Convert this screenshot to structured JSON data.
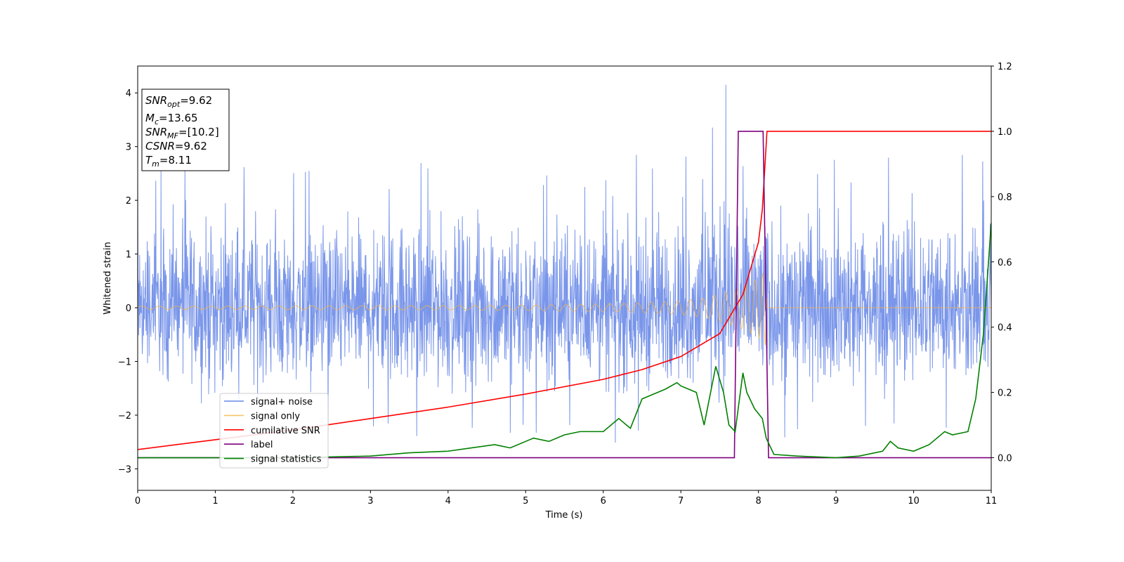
{
  "chart_data": {
    "type": "line",
    "title": "",
    "xlabel": "Time (s)",
    "ylabel": "Whitened strain",
    "xlim": [
      0,
      11
    ],
    "ylim": [
      -3.4,
      4.5
    ],
    "y2lim": [
      -0.1,
      1.2
    ],
    "xticks": [
      "0",
      "1",
      "2",
      "3",
      "4",
      "5",
      "6",
      "7",
      "8",
      "9",
      "10",
      "11"
    ],
    "yticks": [
      "−3",
      "−2",
      "−1",
      "0",
      "1",
      "2",
      "3",
      "4"
    ],
    "y2ticks": [
      "0.0",
      "0.2",
      "0.4",
      "0.6",
      "0.8",
      "1.0",
      "1.2"
    ],
    "legend_position": "lower-left",
    "grid": false,
    "info_box": {
      "snr_opt": {
        "base": "SNR",
        "sub": "opt",
        "value": "=9.62"
      },
      "mc": {
        "base": "M",
        "sub": "c",
        "value": "=13.65"
      },
      "snr_mf": {
        "base": "SNR",
        "sub": "MF",
        "value": "=[10.2]"
      },
      "csnr": {
        "base": "CSNR",
        "sub": "",
        "value": "=9.62"
      },
      "tm": {
        "base": "T",
        "sub": "m",
        "value": "=8.11"
      }
    },
    "series": [
      {
        "name": "signal+ noise",
        "axis": "left",
        "color": "#4169e1",
        "description": "noise band",
        "envelope_x": [
          0,
          1,
          2,
          3,
          4,
          5,
          6,
          7,
          7.58,
          8,
          9,
          10,
          11
        ],
        "envelope_min": [
          -2.0,
          -2.6,
          -2.4,
          -2.5,
          -2.7,
          -2.5,
          -2.6,
          -2.5,
          -2.4,
          -2.5,
          -2.4,
          -2.5,
          -2.2
        ],
        "envelope_max": [
          2.6,
          2.8,
          2.7,
          2.6,
          2.8,
          2.7,
          2.8,
          3.0,
          4.15,
          2.9,
          2.8,
          3.25,
          3.0
        ]
      },
      {
        "name": "signal only",
        "axis": "left",
        "color": "#f5b642",
        "x": [
          0,
          1,
          2,
          3,
          4,
          5,
          6,
          6.5,
          7,
          7.3,
          7.6,
          7.8,
          8.0,
          8.1,
          8.11,
          11
        ],
        "amplitude": [
          0.03,
          0.03,
          0.035,
          0.04,
          0.04,
          0.05,
          0.07,
          0.09,
          0.13,
          0.18,
          0.3,
          0.4,
          0.55,
          0.72,
          0.0,
          0.0
        ]
      },
      {
        "name": "cumilative SNR",
        "axis": "right",
        "color": "#ff0000",
        "x": [
          0,
          1,
          2,
          3,
          4,
          5,
          6,
          6.5,
          7,
          7.5,
          7.8,
          8.0,
          8.05,
          8.11,
          11
        ],
        "values": [
          0.025,
          0.055,
          0.085,
          0.12,
          0.155,
          0.195,
          0.24,
          0.27,
          0.31,
          0.38,
          0.5,
          0.66,
          0.76,
          1.0,
          1.0
        ]
      },
      {
        "name": "label",
        "axis": "right",
        "color": "#800080",
        "x": [
          0,
          7.69,
          7.74,
          8.06,
          8.13,
          11
        ],
        "values": [
          0.0,
          0.0,
          1.0,
          1.0,
          0.0,
          0.0
        ]
      },
      {
        "name": "signal statistics",
        "axis": "right",
        "color": "#008000",
        "x": [
          0,
          2.0,
          3.0,
          3.5,
          4.0,
          4.3,
          4.6,
          4.8,
          5.0,
          5.1,
          5.3,
          5.5,
          5.7,
          6.0,
          6.2,
          6.35,
          6.5,
          6.7,
          6.8,
          6.95,
          7.0,
          7.2,
          7.3,
          7.45,
          7.55,
          7.62,
          7.7,
          7.8,
          7.85,
          7.95,
          8.05,
          8.1,
          8.2,
          8.5,
          9.0,
          9.3,
          9.6,
          9.7,
          9.8,
          10.0,
          10.2,
          10.4,
          10.5,
          10.7,
          10.8,
          10.9,
          11.0
        ],
        "values": [
          0.0,
          0.0,
          0.005,
          0.015,
          0.02,
          0.03,
          0.04,
          0.03,
          0.05,
          0.06,
          0.05,
          0.07,
          0.08,
          0.08,
          0.12,
          0.09,
          0.18,
          0.2,
          0.21,
          0.23,
          0.22,
          0.2,
          0.1,
          0.28,
          0.2,
          0.1,
          0.08,
          0.26,
          0.2,
          0.15,
          0.12,
          0.06,
          0.01,
          0.005,
          0.0,
          0.005,
          0.02,
          0.05,
          0.03,
          0.02,
          0.04,
          0.08,
          0.07,
          0.08,
          0.18,
          0.38,
          0.72
        ]
      }
    ]
  }
}
